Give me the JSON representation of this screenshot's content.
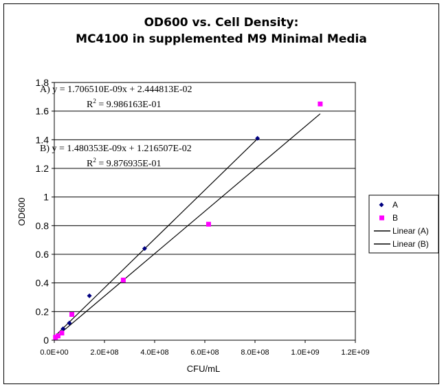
{
  "chart_data": {
    "type": "scatter",
    "title_line1": "OD600 vs. Cell Density:",
    "title_line2": "MC4100 in supplemented M9 Minimal Media",
    "xlabel": "CFU/mL",
    "ylabel": "OD600",
    "xlim": [
      0,
      1200000000
    ],
    "ylim": [
      0,
      1.8
    ],
    "x_ticks": [
      0,
      200000000,
      400000000,
      600000000,
      800000000,
      1000000000,
      1200000000
    ],
    "x_tick_labels": [
      "0.0E+00",
      "2.0E+08",
      "4.0E+08",
      "6.0E+08",
      "8.0E+08",
      "1.0E+09",
      "1.2E+09"
    ],
    "y_ticks": [
      0,
      0.2,
      0.4,
      0.6,
      0.8,
      1,
      1.2,
      1.4,
      1.6,
      1.8
    ],
    "y_tick_labels": [
      "0",
      "0.2",
      "0.4",
      "0.6",
      "0.8",
      "1",
      "1.2",
      "1.4",
      "1.6",
      "1.8"
    ],
    "grid": "horizontal",
    "legend_position": "right",
    "series": [
      {
        "name": "A",
        "marker": "diamond",
        "color": "#000080",
        "points": [
          {
            "x": 5000000,
            "y": 0.02
          },
          {
            "x": 35000000,
            "y": 0.08
          },
          {
            "x": 60000000,
            "y": 0.12
          },
          {
            "x": 140000000,
            "y": 0.31
          },
          {
            "x": 360000000,
            "y": 0.64
          },
          {
            "x": 810000000,
            "y": 1.41
          }
        ]
      },
      {
        "name": "B",
        "marker": "square",
        "color": "#ff00ff",
        "points": [
          {
            "x": 5000000,
            "y": 0.02
          },
          {
            "x": 15000000,
            "y": 0.03
          },
          {
            "x": 30000000,
            "y": 0.05
          },
          {
            "x": 70000000,
            "y": 0.18
          },
          {
            "x": 275000000,
            "y": 0.42
          },
          {
            "x": 615000000,
            "y": 0.81
          },
          {
            "x": 1060000000,
            "y": 1.65
          }
        ]
      }
    ],
    "trendlines": [
      {
        "name": "Linear (A)",
        "slope": 1.70651e-09,
        "intercept": 0.02444813,
        "x_range": [
          0,
          810000000
        ],
        "color": "#000000"
      },
      {
        "name": "Linear (B)",
        "slope": 1.480353e-09,
        "intercept": 0.01216507,
        "x_range": [
          0,
          1060000000
        ],
        "color": "#000000"
      }
    ],
    "annotations": {
      "eq_a": "A) y = 1.706510E-09x + 2.444813E-02",
      "r2_a_label": "R",
      "r2_a_exp": "2",
      "r2_a_value": " = 9.986163E-01",
      "eq_b": "B) y = 1.480353E-09x + 1.216507E-02",
      "r2_b_label": "R",
      "r2_b_exp": "2",
      "r2_b_value": " = 9.876935E-01"
    },
    "legend": [
      {
        "label": "A",
        "kind": "diamond",
        "color": "#000080"
      },
      {
        "label": "B",
        "kind": "square",
        "color": "#ff00ff"
      },
      {
        "label": "Linear (A)",
        "kind": "line",
        "color": "#000000"
      },
      {
        "label": "Linear (B)",
        "kind": "line",
        "color": "#000000"
      }
    ]
  }
}
